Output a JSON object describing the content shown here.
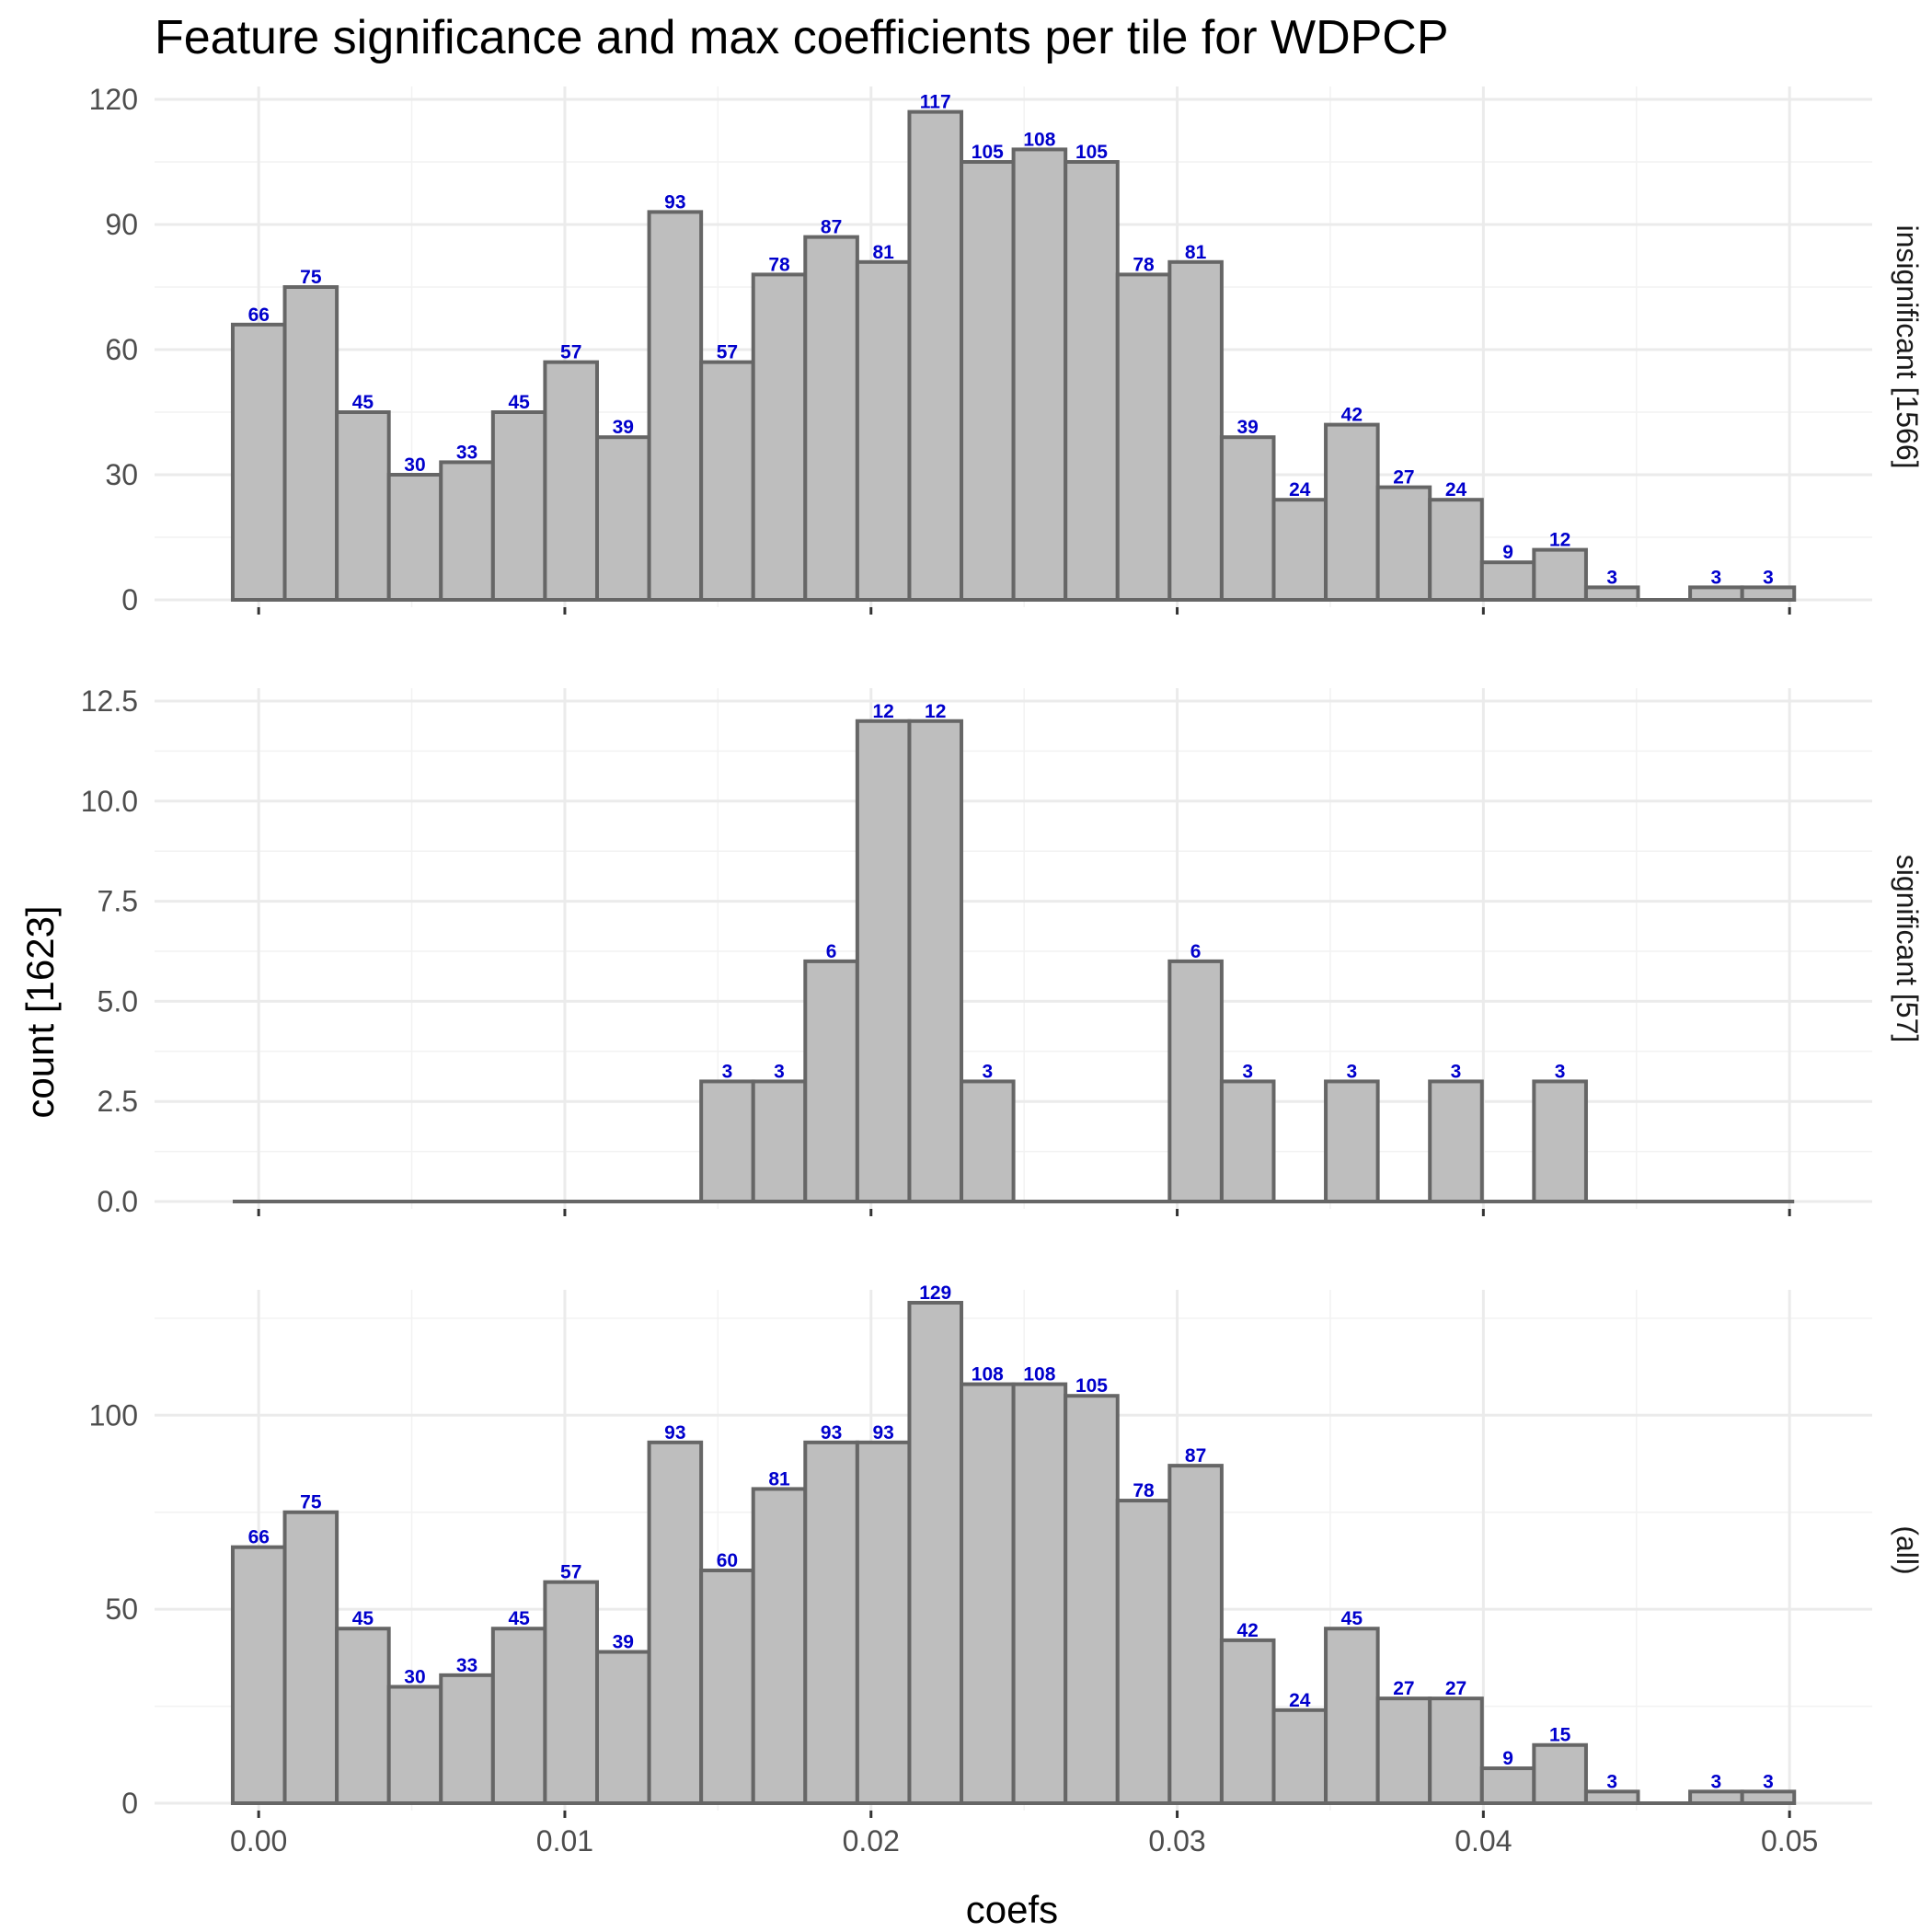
{
  "chart_data": {
    "type": "bar",
    "title": "Feature significance and max coefficients per tile for WDPCP",
    "xlabel": "coefs",
    "ylabel": "count [1623]",
    "xlim": [
      -0.0034,
      0.0527
    ],
    "bin_start": -0.000847,
    "bin_width": 0.0017,
    "x_ticks": [
      0.0,
      0.01,
      0.02,
      0.03,
      0.04,
      0.05
    ],
    "x_tick_labels": [
      "0.00",
      "0.01",
      "0.02",
      "0.03",
      "0.04",
      "0.05"
    ],
    "colors": {
      "bar_fill": "#bebebe",
      "bar_outline": "#666666",
      "label": "#0000cc"
    },
    "grid": true,
    "panels": [
      {
        "strip_label": "insignificant [1566]",
        "ylim": [
          0,
          120
        ],
        "y_ticks": [
          0,
          30,
          60,
          90,
          120
        ],
        "y_tick_labels": [
          "0",
          "30",
          "60",
          "90",
          "120"
        ],
        "values": [
          66,
          75,
          45,
          30,
          33,
          45,
          57,
          39,
          93,
          57,
          78,
          87,
          81,
          117,
          105,
          108,
          105,
          78,
          81,
          39,
          24,
          42,
          27,
          24,
          9,
          12,
          3,
          0,
          3,
          3
        ]
      },
      {
        "strip_label": "significant [57]",
        "ylim": [
          0,
          12.5
        ],
        "y_ticks": [
          0,
          2.5,
          5,
          7.5,
          10,
          12.5
        ],
        "y_tick_labels": [
          "0.0",
          "2.5",
          "5.0",
          "7.5",
          "10.0",
          "12.5"
        ],
        "values": [
          0,
          0,
          0,
          0,
          0,
          0,
          0,
          0,
          0,
          3,
          3,
          6,
          12,
          12,
          3,
          0,
          0,
          0,
          6,
          3,
          0,
          3,
          0,
          3,
          0,
          3,
          0,
          0,
          0,
          0
        ]
      },
      {
        "strip_label": "(all)",
        "ylim": [
          0,
          129
        ],
        "y_ticks": [
          0,
          50,
          100
        ],
        "y_tick_labels": [
          "0",
          "50",
          "100"
        ],
        "values": [
          66,
          75,
          45,
          30,
          33,
          45,
          57,
          39,
          93,
          60,
          81,
          93,
          93,
          129,
          108,
          108,
          105,
          78,
          87,
          42,
          24,
          45,
          27,
          27,
          9,
          15,
          3,
          0,
          3,
          3
        ]
      }
    ]
  }
}
